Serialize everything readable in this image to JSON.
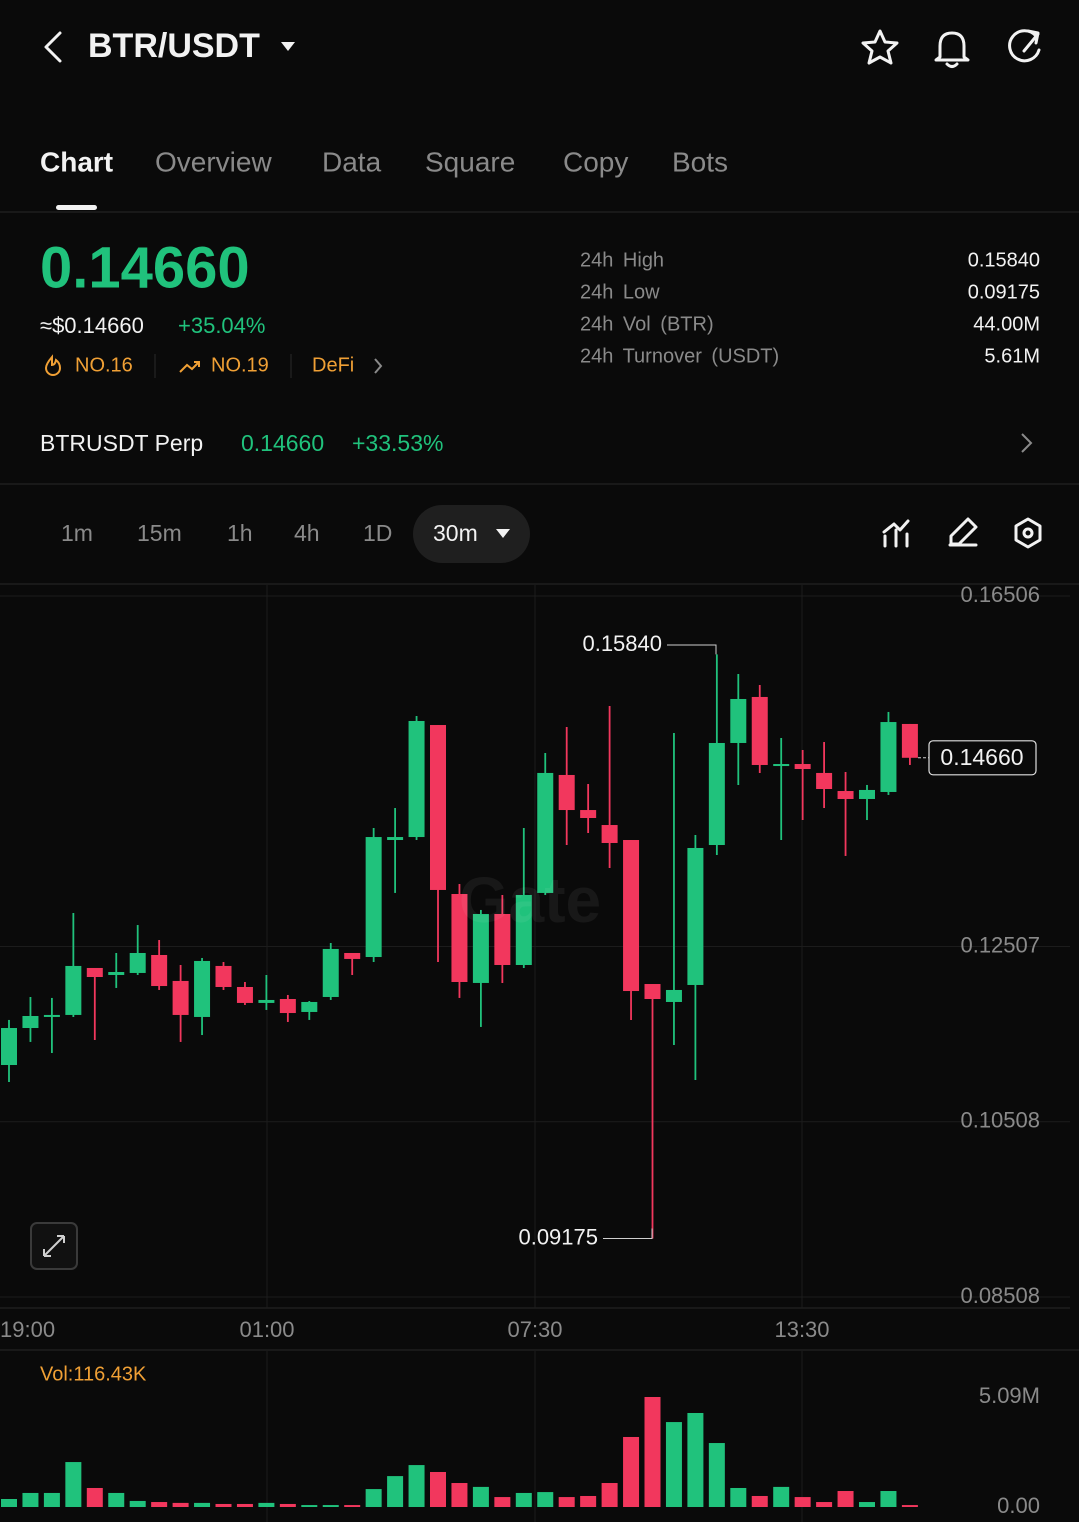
{
  "header": {
    "pair": "BTR/USDT"
  },
  "tabs": [
    "Chart",
    "Overview",
    "Data",
    "Square",
    "Copy",
    "Bots"
  ],
  "price": {
    "last": "0.14660",
    "usd": "≈$0.14660",
    "change": "+35.04%",
    "badges": [
      "NO.16",
      "NO.19",
      "DeFi"
    ]
  },
  "stats": [
    {
      "label": "24h High",
      "value": "0.15840"
    },
    {
      "label": "24h Low",
      "value": "0.09175"
    },
    {
      "label": "24h Vol (BTR)",
      "value": "44.00M"
    },
    {
      "label": "24h Turnover (USDT)",
      "value": "5.61M"
    }
  ],
  "perp": {
    "name": "BTRUSDT Perp",
    "price": "0.14660",
    "change": "+33.53%"
  },
  "intervals": [
    "1m",
    "15m",
    "1h",
    "4h",
    "1D",
    "30m"
  ],
  "watermark": "Gate",
  "chart_data": [
    {
      "type": "candlestick",
      "open": [
        0.11155,
        0.11577,
        0.11703,
        0.11726,
        0.12262,
        0.12182,
        0.12205,
        0.1241,
        0.12114,
        0.11703,
        0.12285,
        0.12045,
        0.11863,
        0.11908,
        0.1176,
        0.11931,
        0.12433,
        0.12387,
        0.13722,
        0.13756,
        0.15034,
        0.13106,
        0.12091,
        0.12878,
        0.12296,
        0.13118,
        0.14464,
        0.14064,
        0.13893,
        0.13722,
        0.12079,
        0.11874,
        0.12068,
        0.13665,
        0.14829,
        0.15354,
        0.14566,
        0.14589,
        0.14487,
        0.14281,
        0.1419,
        0.1427,
        0.15046
      ],
      "high": [
        0.11669,
        0.11931,
        0.1192,
        0.12889,
        0.12262,
        0.12433,
        0.12752,
        0.12581,
        0.12296,
        0.12376,
        0.1233,
        0.12102,
        0.12182,
        0.11954,
        0.11885,
        0.12547,
        0.12433,
        0.13859,
        0.14087,
        0.15137,
        0.15034,
        0.1322,
        0.12924,
        0.13095,
        0.13859,
        0.14715,
        0.15011,
        0.14361,
        0.15251,
        0.13722,
        0.12079,
        0.14943,
        0.13779,
        0.1584,
        0.15616,
        0.15491,
        0.14886,
        0.14749,
        0.1484,
        0.14498,
        0.1435,
        0.15183,
        0.15046
      ],
      "low": [
        0.10961,
        0.11418,
        0.11292,
        0.11703,
        0.1144,
        0.12034,
        0.12182,
        0.12011,
        0.11418,
        0.11497,
        0.12011,
        0.1184,
        0.11783,
        0.11646,
        0.11669,
        0.11897,
        0.12182,
        0.1233,
        0.13118,
        0.13722,
        0.1233,
        0.1192,
        0.11589,
        0.12091,
        0.12262,
        0.13095,
        0.13665,
        0.13802,
        0.13403,
        0.11669,
        0.09175,
        0.11383,
        0.10984,
        0.13551,
        0.1435,
        0.14487,
        0.13722,
        0.1395,
        0.14087,
        0.1354,
        0.1395,
        0.14236,
        0.14578
      ],
      "close": [
        0.11577,
        0.11714,
        0.11726,
        0.12285,
        0.12159,
        0.12216,
        0.12433,
        0.12056,
        0.11726,
        0.12342,
        0.12045,
        0.11863,
        0.11897,
        0.11748,
        0.11874,
        0.12479,
        0.12365,
        0.13756,
        0.13756,
        0.1508,
        0.13152,
        0.12102,
        0.12878,
        0.12296,
        0.13095,
        0.14487,
        0.14064,
        0.13973,
        0.13688,
        0.11999,
        0.11908,
        0.12011,
        0.13631,
        0.14829,
        0.15331,
        0.14578,
        0.14589,
        0.14532,
        0.14304,
        0.1419,
        0.14293,
        0.15068,
        0.1466
      ],
      "up_color": "#20c27c",
      "down_color": "#f2375d",
      "ylim": [
        0.08508,
        0.16506
      ],
      "yticks": [
        0.08508,
        0.10508,
        0.12507,
        0.16506
      ],
      "x_labels": [
        "19:00",
        "01:00",
        "07:30",
        "13:30"
      ],
      "annotations": [
        {
          "value": 0.1584,
          "label": "0.15840"
        },
        {
          "value": 0.09175,
          "label": "0.09175"
        },
        {
          "value": 0.1466,
          "label": "0.14660"
        }
      ],
      "grid": true
    },
    {
      "type": "bar",
      "title": "Vol:116.43K",
      "values": [
        0.37,
        0.65,
        0.65,
        2.08,
        0.88,
        0.65,
        0.28,
        0.23,
        0.19,
        0.19,
        0.14,
        0.14,
        0.19,
        0.14,
        0.09,
        0.09,
        0.09,
        0.83,
        1.43,
        1.94,
        1.62,
        1.11,
        0.93,
        0.46,
        0.65,
        0.69,
        0.46,
        0.51,
        1.11,
        3.24,
        5.09,
        3.93,
        4.35,
        2.96,
        0.88,
        0.51,
        0.93,
        0.46,
        0.23,
        0.74,
        0.23,
        0.74,
        0.09
      ],
      "ylim": [
        0,
        5.09
      ],
      "yticks": [
        {
          "value": 0,
          "label": "0.00"
        },
        {
          "value": 5.09,
          "label": "5.09M"
        }
      ]
    }
  ]
}
